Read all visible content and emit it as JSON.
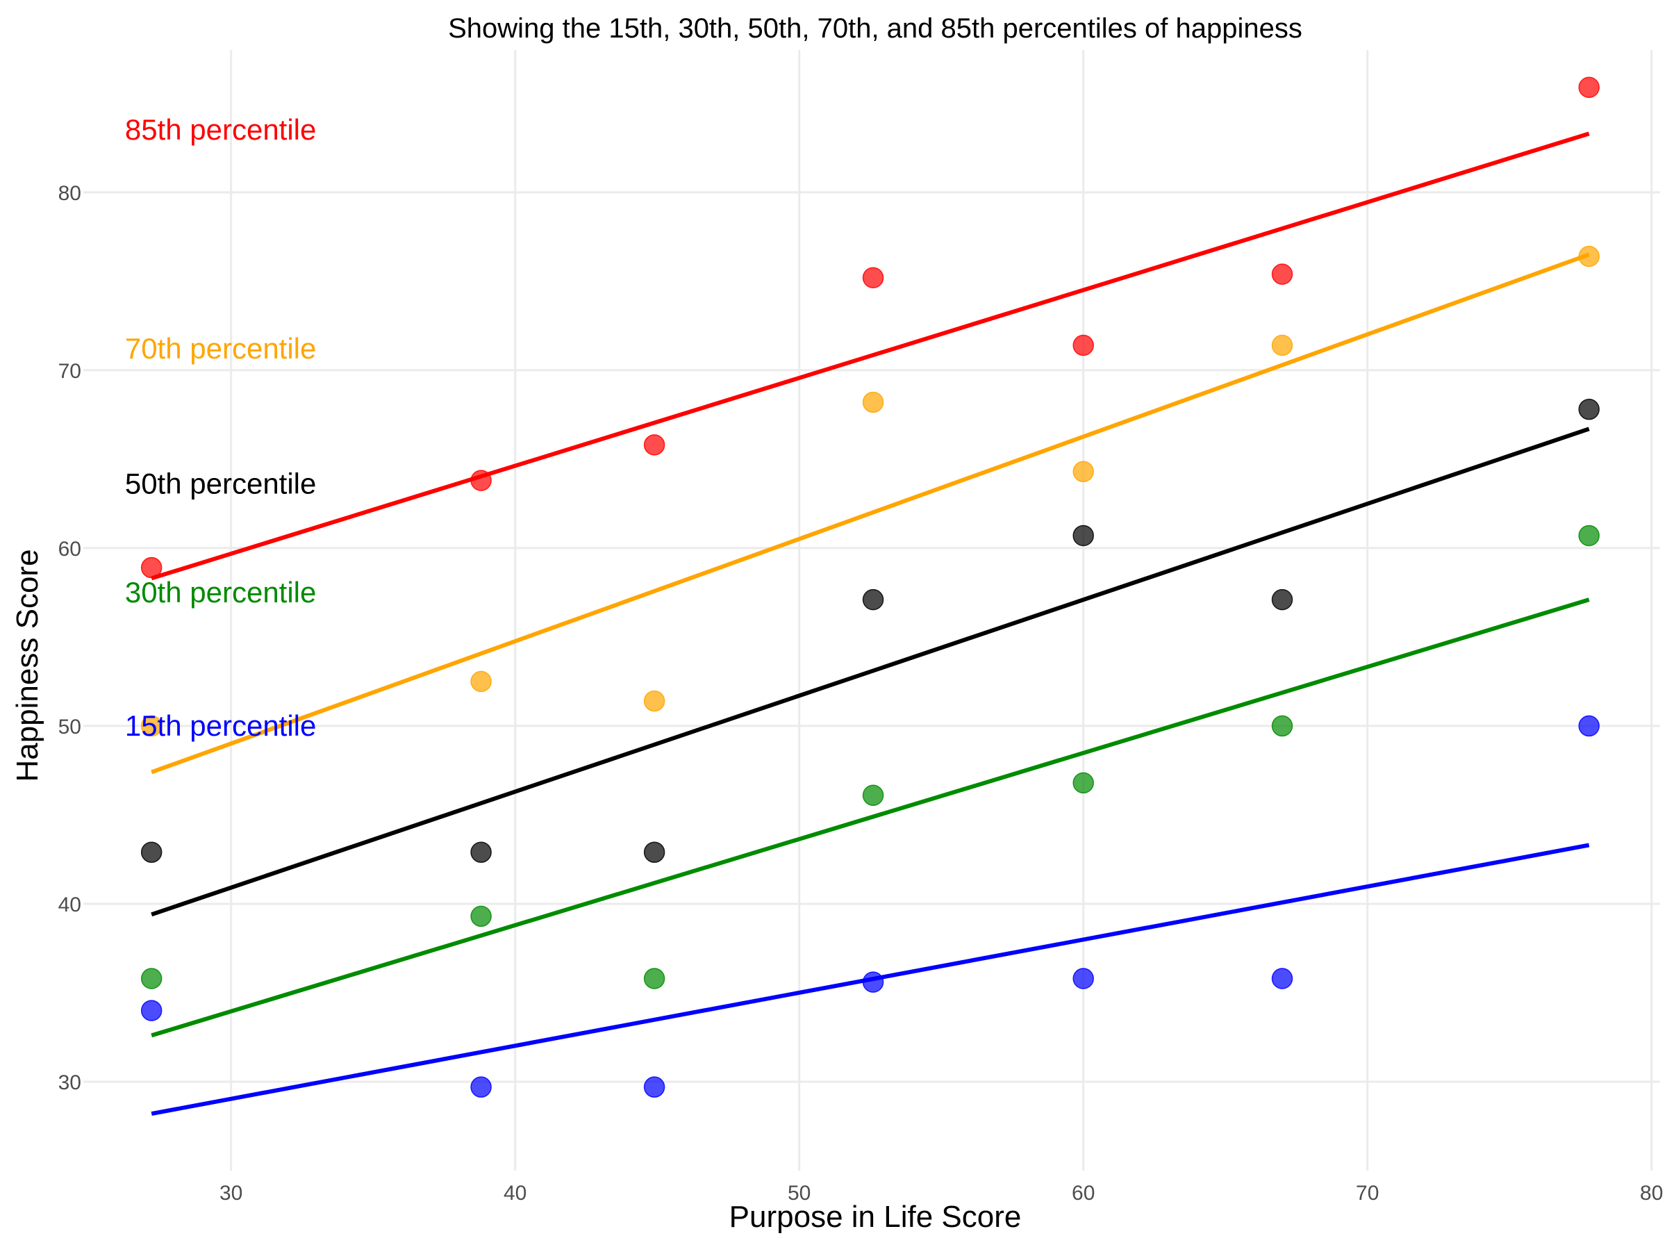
{
  "chart_data": {
    "type": "scatter",
    "title": "Showing the 15th, 30th, 50th, 70th, and 85th percentiles of happiness",
    "xlabel": "Purpose in Life Score",
    "ylabel": "Happiness Score",
    "xlim": [
      24.8,
      80.3
    ],
    "ylim": [
      25.0,
      88.0
    ],
    "x_ticks": [
      30,
      40,
      50,
      60,
      70,
      80
    ],
    "y_ticks": [
      30,
      40,
      50,
      60,
      70,
      80
    ],
    "grid": true,
    "x": [
      27.2,
      38.8,
      44.9,
      52.6,
      60.0,
      67.0,
      77.8
    ],
    "series": [
      {
        "name": "15th percentile",
        "color": "#0000ff",
        "points": [
          34.0,
          29.7,
          29.7,
          35.6,
          35.8,
          35.8,
          50.0
        ],
        "fit": [
          28.2,
          43.3
        ]
      },
      {
        "name": "30th percentile",
        "color": "#008b00",
        "points": [
          35.8,
          39.3,
          35.8,
          46.1,
          46.8,
          50.0,
          60.7
        ],
        "fit": [
          32.6,
          57.1
        ]
      },
      {
        "name": "50th percentile",
        "color": "#000000",
        "points": [
          42.9,
          42.9,
          42.9,
          57.1,
          60.7,
          57.1,
          67.8
        ],
        "fit": [
          39.4,
          66.7
        ]
      },
      {
        "name": "70th percentile",
        "color": "#ffa500",
        "points": [
          50.0,
          52.5,
          51.4,
          68.2,
          64.3,
          71.4,
          76.4
        ],
        "fit": [
          47.4,
          76.5
        ]
      },
      {
        "name": "85th percentile",
        "color": "#ff0000",
        "points": [
          58.9,
          63.8,
          65.8,
          75.2,
          71.4,
          75.4,
          85.9
        ],
        "fit": [
          58.3,
          83.3
        ]
      }
    ],
    "label_positions": [
      {
        "series": "85th percentile",
        "x": 33,
        "y": 83.5
      },
      {
        "series": "70th percentile",
        "x": 33,
        "y": 71.2
      },
      {
        "series": "50th percentile",
        "x": 33,
        "y": 63.6
      },
      {
        "series": "30th percentile",
        "x": 33,
        "y": 57.5
      },
      {
        "series": "15th percentile",
        "x": 33,
        "y": 50.0
      }
    ]
  }
}
